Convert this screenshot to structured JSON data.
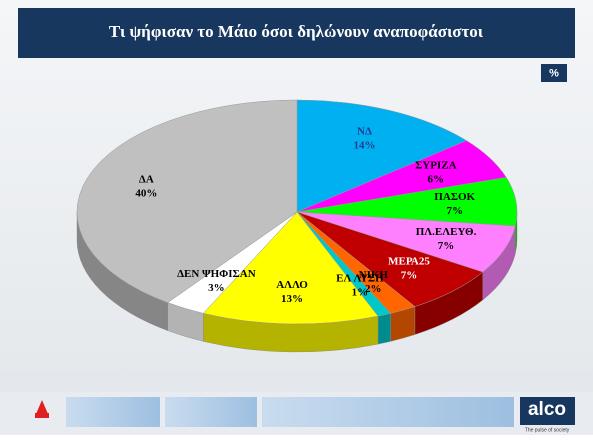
{
  "chart_data": {
    "type": "pie",
    "title": "Τι ψήφισαν το Μάιο όσοι δηλώνουν αναποφάσιστοι",
    "unit_badge": "%",
    "categories": [
      "ΝΔ",
      "ΣΥΡΙΖΑ",
      "ΠΑΣΟΚ",
      "ΠΛ.ΕΛΕΥΘ.",
      "ΜΕΡΑ25",
      "ΝΙΚΗ",
      "ΕΛ ΛΥΣΗ",
      "ΑΛΛΟ",
      "ΔΕΝ ΨΗΦΙΣΑΝ",
      "ΔΑ"
    ],
    "values": [
      14,
      6,
      7,
      7,
      7,
      2,
      1,
      13,
      3,
      40
    ],
    "value_labels": [
      "14%",
      "6%",
      "7%",
      "7%",
      "7%",
      "2%",
      "1%",
      "13%",
      "3%",
      "40%"
    ],
    "colors": [
      "#00b0f0",
      "#ff00ff",
      "#00ff00",
      "#ff80ff",
      "#c00000",
      "#ff6600",
      "#00c8c8",
      "#ffff00",
      "#ffffff",
      "#c0c0c0"
    ]
  },
  "footer": {
    "logo": "alco",
    "tagline": "The pulse of society"
  }
}
